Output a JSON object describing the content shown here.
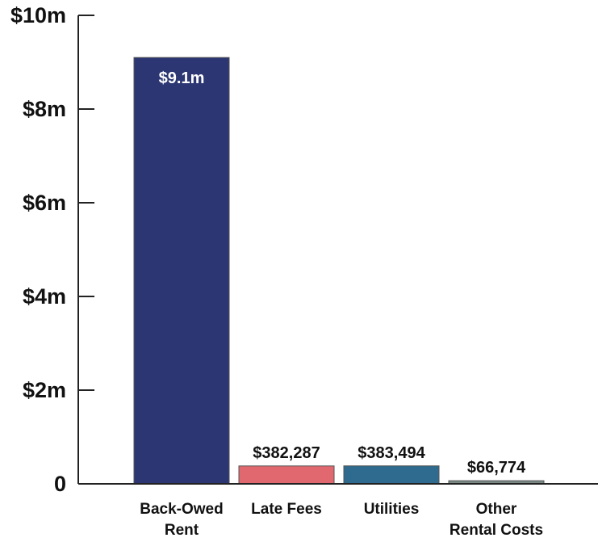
{
  "chart_data": {
    "type": "bar",
    "categories": [
      [
        "Back-Owed",
        "Rent"
      ],
      [
        "Late Fees"
      ],
      [
        "Utilities"
      ],
      [
        "Other",
        "Rental Costs"
      ]
    ],
    "values": [
      9100000,
      382287,
      383494,
      66774
    ],
    "data_labels": [
      "$9.1m",
      "$382,287",
      "$383,494",
      "$66,774"
    ],
    "colors": [
      "#2b3673",
      "#e0686e",
      "#2e6b8f",
      "#7a8a85"
    ],
    "y_ticks": [
      0,
      2000000,
      4000000,
      6000000,
      8000000,
      10000000
    ],
    "y_tick_labels": [
      "0",
      "$2m",
      "$4m",
      "$6m",
      "$8m",
      "$10m"
    ],
    "ylim": [
      0,
      10000000
    ],
    "title": "",
    "xlabel": "",
    "ylabel": "",
    "grid": false,
    "legend": "none"
  }
}
